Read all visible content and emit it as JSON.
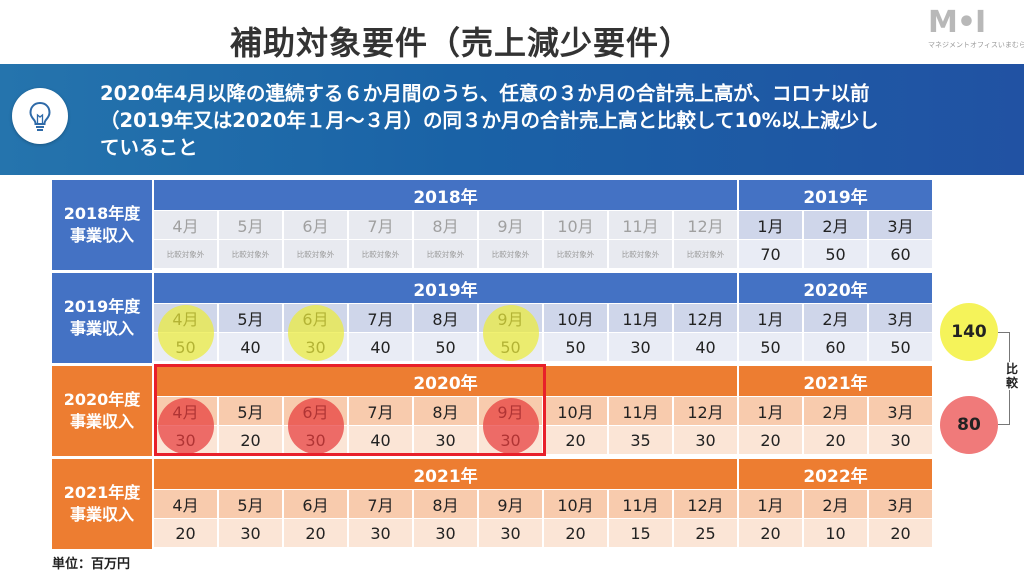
{
  "title": "補助対象要件（売上減少要件）",
  "logo": {
    "mark": "M•I",
    "subtitle": "マネジメントオフィスいまむら"
  },
  "banner": {
    "icon": "lightbulb-icon",
    "lines": [
      "2020年4月以降の連続する６か月間のうち、任意の３か月の合計売上高が、コロナ以前",
      "（2019年又は2020年１月～３月）の同３か月の合計売上高と比較して10%以上減少し",
      "ていること"
    ]
  },
  "colors": {
    "blue": "#4472c4",
    "orange": "#ed7d31",
    "highlight_yellow": "#f5f35a",
    "highlight_red": "#e83c3c"
  },
  "months": [
    "4月",
    "5月",
    "6月",
    "7月",
    "8月",
    "9月",
    "10月",
    "11月",
    "12月",
    "1月",
    "2月",
    "3月"
  ],
  "blocks": [
    {
      "label_line1": "2018年度",
      "label_line2": "事業収入",
      "year_main": "2018年",
      "year_next": "2019年",
      "values": [
        "比較対象外",
        "比較対象外",
        "比較対象外",
        "比較対象外",
        "比較対象外",
        "比較対象外",
        "比較対象外",
        "比較対象外",
        "比較対象外",
        "70",
        "50",
        "60"
      ]
    },
    {
      "label_line1": "2019年度",
      "label_line2": "事業収入",
      "year_main": "2019年",
      "year_next": "2020年",
      "values": [
        "50",
        "40",
        "30",
        "40",
        "50",
        "50",
        "50",
        "30",
        "40",
        "50",
        "60",
        "50"
      ]
    },
    {
      "label_line1": "2020年度",
      "label_line2": "事業収入",
      "year_main": "2020年",
      "year_next": "2021年",
      "values": [
        "30",
        "20",
        "30",
        "40",
        "30",
        "30",
        "20",
        "35",
        "30",
        "20",
        "20",
        "30"
      ]
    },
    {
      "label_line1": "2021年度",
      "label_line2": "事業収入",
      "year_main": "2021年",
      "year_next": "2022年",
      "values": [
        "20",
        "30",
        "20",
        "30",
        "30",
        "30",
        "20",
        "15",
        "25",
        "20",
        "10",
        "20"
      ]
    }
  ],
  "sums": {
    "before": "140",
    "after": "80"
  },
  "compare_label": "比較",
  "unit": "単位：百万円"
}
